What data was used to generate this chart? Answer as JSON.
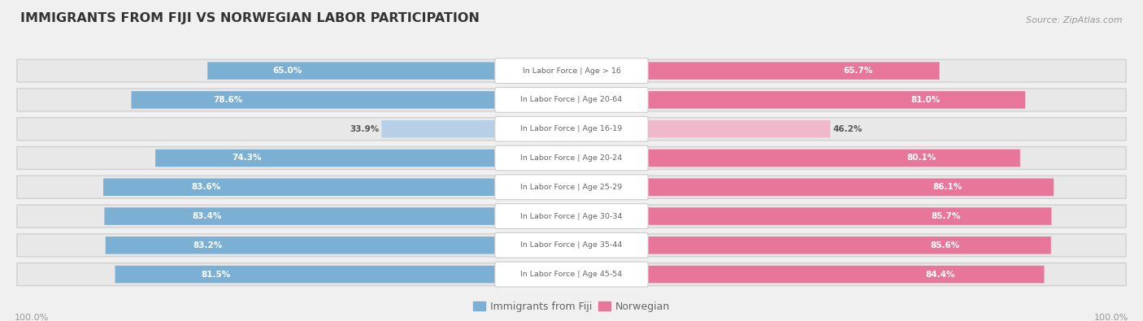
{
  "title": "IMMIGRANTS FROM FIJI VS NORWEGIAN LABOR PARTICIPATION",
  "source": "Source: ZipAtlas.com",
  "categories": [
    "In Labor Force | Age > 16",
    "In Labor Force | Age 20-64",
    "In Labor Force | Age 16-19",
    "In Labor Force | Age 20-24",
    "In Labor Force | Age 25-29",
    "In Labor Force | Age 30-34",
    "In Labor Force | Age 35-44",
    "In Labor Force | Age 45-54"
  ],
  "fiji_values": [
    65.0,
    78.6,
    33.9,
    74.3,
    83.6,
    83.4,
    83.2,
    81.5
  ],
  "norwegian_values": [
    65.7,
    81.0,
    46.2,
    80.1,
    86.1,
    85.7,
    85.6,
    84.4
  ],
  "fiji_color": "#7bafd4",
  "fiji_color_light": "#b8cfe8",
  "norwegian_color": "#e8759a",
  "norwegian_color_light": "#f0b8cb",
  "bg_color": "#f0f0f0",
  "row_pill_color": "#e8e8e8",
  "row_pill_stroke": "#d0d0d0",
  "label_bg": "#ffffff",
  "center_label_color": "#666666",
  "value_color_white": "#ffffff",
  "value_color_dark": "#555555",
  "title_color": "#333333",
  "source_color": "#999999",
  "axis_label_color": "#999999",
  "max_value": 100.0,
  "legend_fiji": "Immigrants from Fiji",
  "legend_norwegian": "Norwegian"
}
